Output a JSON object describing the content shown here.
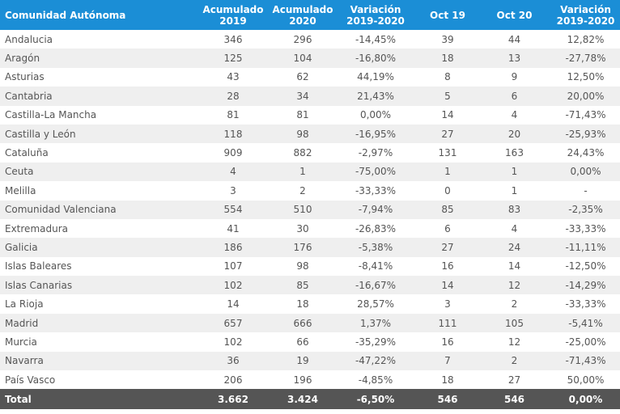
{
  "table": {
    "header": [
      "Comunidad Autónoma",
      "Acumulado\n2019",
      "Acumulado\n2020",
      "Variación\n2019-2020",
      "Oct 19",
      "Oct 20",
      "Variación\n2019-2020"
    ],
    "rows": [
      [
        "Andalucia",
        "346",
        "296",
        "-14,45%",
        "39",
        "44",
        "12,82%"
      ],
      [
        "Aragón",
        "125",
        "104",
        "-16,80%",
        "18",
        "13",
        "-27,78%"
      ],
      [
        "Asturias",
        "43",
        "62",
        "44,19%",
        "8",
        "9",
        "12,50%"
      ],
      [
        "Cantabria",
        "28",
        "34",
        "21,43%",
        "5",
        "6",
        "20,00%"
      ],
      [
        "Castilla-La Mancha",
        "81",
        "81",
        "0,00%",
        "14",
        "4",
        "-71,43%"
      ],
      [
        "Castilla y León",
        "118",
        "98",
        "-16,95%",
        "27",
        "20",
        "-25,93%"
      ],
      [
        "Cataluña",
        "909",
        "882",
        "-2,97%",
        "131",
        "163",
        "24,43%"
      ],
      [
        "Ceuta",
        "4",
        "1",
        "-75,00%",
        "1",
        "1",
        "0,00%"
      ],
      [
        "Melilla",
        "3",
        "2",
        "-33,33%",
        "0",
        "1",
        "-"
      ],
      [
        "Comunidad Valenciana",
        "554",
        "510",
        "-7,94%",
        "85",
        "83",
        "-2,35%"
      ],
      [
        "Extremadura",
        "41",
        "30",
        "-26,83%",
        "6",
        "4",
        "-33,33%"
      ],
      [
        "Galicia",
        "186",
        "176",
        "-5,38%",
        "27",
        "24",
        "-11,11%"
      ],
      [
        "Islas Baleares",
        "107",
        "98",
        "-8,41%",
        "16",
        "14",
        "-12,50%"
      ],
      [
        "Islas Canarias",
        "102",
        "85",
        "-16,67%",
        "14",
        "12",
        "-14,29%"
      ],
      [
        "La Rioja",
        "14",
        "18",
        "28,57%",
        "3",
        "2",
        "-33,33%"
      ],
      [
        "Madrid",
        "657",
        "666",
        "1,37%",
        "111",
        "105",
        "-5,41%"
      ],
      [
        "Murcia",
        "102",
        "66",
        "-35,29%",
        "16",
        "12",
        "-25,00%"
      ],
      [
        "Navarra",
        "36",
        "19",
        "-47,22%",
        "7",
        "2",
        "-71,43%"
      ],
      [
        "País Vasco",
        "206",
        "196",
        "-4,85%",
        "18",
        "27",
        "50,00%"
      ]
    ],
    "total": [
      "Total",
      "3.662",
      "3.424",
      "-6,50%",
      "546",
      "546",
      "0,00%"
    ]
  }
}
